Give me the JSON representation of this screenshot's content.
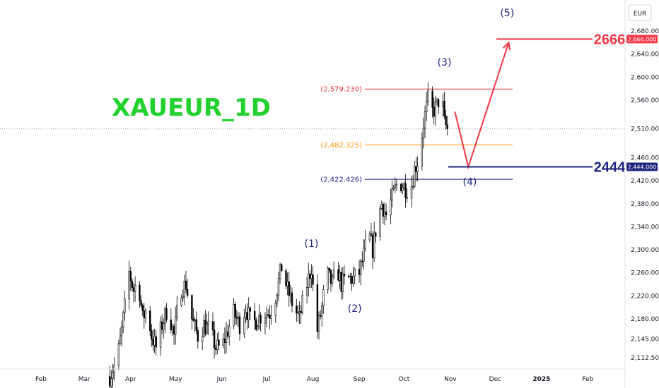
{
  "chart_data": {
    "type": "candlestick",
    "title": "XAUEUR_1D",
    "currency": "EUR",
    "ylim": [
      2090,
      2715
    ],
    "y_ticks": [
      2112.5,
      2145,
      2180,
      2220,
      2260,
      2300,
      2340,
      2380,
      2420,
      2460,
      2510,
      2560,
      2600,
      2640,
      2680
    ],
    "y_tick_labels": [
      "2,112.500",
      "2,145.000",
      "2,180.000",
      "2,220.000",
      "2,260.000",
      "2,300.000",
      "2,340.000",
      "2,380.000",
      "2,420.000",
      "2,460.000",
      "2,510.000",
      "2,560.000",
      "2,600.000",
      "2,640.000",
      "2,680.000"
    ],
    "x_ticks": [
      {
        "label": "Feb",
        "day": 31
      },
      {
        "label": "Mar",
        "day": 60
      },
      {
        "label": "Apr",
        "day": 91
      },
      {
        "label": "May",
        "day": 121
      },
      {
        "label": "Jun",
        "day": 152
      },
      {
        "label": "Jul",
        "day": 182
      },
      {
        "label": "Aug",
        "day": 213
      },
      {
        "label": "Sep",
        "day": 244
      },
      {
        "label": "Oct",
        "day": 274
      },
      {
        "label": "Nov",
        "day": 305
      },
      {
        "label": "Dec",
        "day": 335
      },
      {
        "label": "2025",
        "day": 366
      },
      {
        "label": "Feb",
        "day": 397
      }
    ],
    "price_path": [
      [
        77,
        2080
      ],
      [
        82,
        2110
      ],
      [
        85,
        2160
      ],
      [
        87,
        2200
      ],
      [
        90,
        2260
      ],
      [
        93,
        2230
      ],
      [
        96,
        2250
      ],
      [
        99,
        2180
      ],
      [
        102,
        2200
      ],
      [
        105,
        2150
      ],
      [
        108,
        2130
      ],
      [
        112,
        2170
      ],
      [
        116,
        2200
      ],
      [
        120,
        2150
      ],
      [
        124,
        2230
      ],
      [
        128,
        2240
      ],
      [
        132,
        2180
      ],
      [
        136,
        2150
      ],
      [
        140,
        2170
      ],
      [
        144,
        2160
      ],
      [
        148,
        2130
      ],
      [
        152,
        2130
      ],
      [
        156,
        2160
      ],
      [
        160,
        2190
      ],
      [
        164,
        2170
      ],
      [
        168,
        2200
      ],
      [
        172,
        2170
      ],
      [
        176,
        2180
      ],
      [
        180,
        2190
      ],
      [
        184,
        2190
      ],
      [
        188,
        2220
      ],
      [
        192,
        2270
      ],
      [
        196,
        2230
      ],
      [
        200,
        2200
      ],
      [
        204,
        2180
      ],
      [
        208,
        2230
      ],
      [
        212,
        2270
      ],
      [
        214,
        2200
      ],
      [
        216,
        2160
      ],
      [
        219,
        2200
      ],
      [
        222,
        2260
      ],
      [
        226,
        2240
      ],
      [
        229,
        2270
      ],
      [
        232,
        2240
      ],
      [
        236,
        2250
      ],
      [
        240,
        2250
      ],
      [
        244,
        2260
      ],
      [
        247,
        2290
      ],
      [
        250,
        2330
      ],
      [
        253,
        2300
      ],
      [
        256,
        2350
      ],
      [
        259,
        2380
      ],
      [
        262,
        2360
      ],
      [
        266,
        2390
      ],
      [
        270,
        2420
      ],
      [
        274,
        2410
      ],
      [
        278,
        2400
      ],
      [
        281,
        2440
      ],
      [
        284,
        2460
      ],
      [
        287,
        2520
      ],
      [
        290,
        2560
      ],
      [
        293,
        2540
      ],
      [
        296,
        2550
      ],
      [
        299,
        2575
      ],
      [
        301,
        2520
      ],
      [
        303,
        2510
      ]
    ],
    "levels": [
      {
        "label": "(2,579.230)",
        "value": 2579.23,
        "color": "#f23645"
      },
      {
        "label": "(2,482.325)",
        "value": 2482.325,
        "color": "#ff9800"
      },
      {
        "label": "(2,422.426)",
        "value": 2422.426,
        "color": "#1a237e"
      }
    ],
    "last_price": 2510,
    "targets": [
      {
        "label": "2666",
        "tag": "2,666.000",
        "value": 2666,
        "color": "#f23645"
      },
      {
        "label": "2444",
        "tag": "2,444.000",
        "value": 2444,
        "color": "#1a237e"
      }
    ],
    "wave_labels": [
      {
        "label": "(1)",
        "day": 212,
        "value": 2305
      },
      {
        "label": "(2)",
        "day": 241,
        "value": 2192
      },
      {
        "label": "(3)",
        "day": 301,
        "value": 2620
      },
      {
        "label": "(4)",
        "day": 318,
        "value": 2412
      },
      {
        "label": "(5)",
        "day": 343,
        "value": 2706
      }
    ],
    "projection": [
      [
        308,
        2540
      ],
      [
        317,
        2444
      ],
      [
        344,
        2660
      ]
    ]
  }
}
